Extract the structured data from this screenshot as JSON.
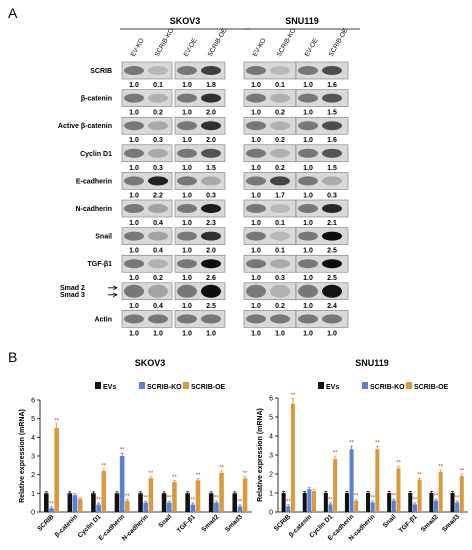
{
  "panel_a": {
    "label": "A",
    "cell_lines": [
      "SKOV3",
      "SNU119"
    ],
    "lanes": [
      "EV-KO",
      "SCRIB-KO",
      "EV-OE",
      "SCRIB-OE"
    ],
    "rows": [
      {
        "name": "SCRIB",
        "skov3": [
          "1.0",
          "0.1",
          "1.0",
          "1.8"
        ],
        "snu119": [
          "1.0",
          "0.1",
          "1.0",
          "1.6"
        ]
      },
      {
        "name": "β-catenin",
        "skov3": [
          "1.0",
          "0.2",
          "1.0",
          "2.0"
        ],
        "snu119": [
          "1.0",
          "0.2",
          "1.0",
          "1.5"
        ]
      },
      {
        "name": "Active β-catenin",
        "skov3": [
          "1.0",
          "0.3",
          "1.0",
          "2.0"
        ],
        "snu119": [
          "1.0",
          "0.2",
          "1.0",
          "1.6"
        ]
      },
      {
        "name": "Cyclin D1",
        "skov3": [
          "1.0",
          "0.3",
          "1.0",
          "1.5"
        ],
        "snu119": [
          "1.0",
          "0.2",
          "1.0",
          "1.5"
        ]
      },
      {
        "name": "E-cadherin",
        "skov3": [
          "1.0",
          "2.2",
          "1.0",
          "0.3"
        ],
        "snu119": [
          "1.0",
          "1.7",
          "1.0",
          "0.3"
        ]
      },
      {
        "name": "N-cadherin",
        "skov3": [
          "1.0",
          "0.4",
          "1.0",
          "2.3"
        ],
        "snu119": [
          "1.0",
          "0.1",
          "1.0",
          "2.1"
        ]
      },
      {
        "name": "Snail",
        "skov3": [
          "1.0",
          "0.4",
          "1.0",
          "2.0"
        ],
        "snu119": [
          "1.0",
          "0.1",
          "1.0",
          "2.5"
        ]
      },
      {
        "name": "TGF-β1",
        "skov3": [
          "1.0",
          "0.2",
          "1.0",
          "2.6"
        ],
        "snu119": [
          "1.0",
          "0.3",
          "1.0",
          "2.5"
        ]
      },
      {
        "name": "Smad 2 / Smad 3",
        "label_lines": [
          "Smad 2",
          "Smad 3"
        ],
        "skov3": [
          "1.0",
          "0.4",
          "1.0",
          "2.5"
        ],
        "snu119": [
          "1.0",
          "0.2",
          "1.0",
          "2.4"
        ]
      },
      {
        "name": "Actin",
        "skov3": [
          "1.0",
          "1.0",
          "1.0",
          "1.0"
        ],
        "snu119": [
          "1.0",
          "1.0",
          "1.0",
          "1.0"
        ]
      }
    ]
  },
  "panel_b": {
    "label": "B",
    "colors": {
      "EVs": "#111111",
      "SCRIB-KO": "#5b7fd1",
      "SCRIB-OE": "#d99a3e"
    },
    "legend": [
      "EVs",
      "SCRIB-KO",
      "SCRIB-OE"
    ],
    "significance": "**"
  },
  "chart_data": [
    {
      "type": "bar",
      "title": "SKOV3",
      "ylabel": "Relative expression (mRNA)",
      "xlabel": "",
      "ylim": [
        0,
        6
      ],
      "yticks": [
        0,
        1,
        2,
        3,
        4,
        5,
        6
      ],
      "categories": [
        "SCRIB",
        "β-catenin",
        "Cyclin D1",
        "E-cadherin",
        "N-cadherin",
        "Snail",
        "TGF-β1",
        "Smad2",
        "Smad3"
      ],
      "series": [
        {
          "name": "EVs",
          "values": [
            1.0,
            1.0,
            1.0,
            1.0,
            1.0,
            1.0,
            1.0,
            1.0,
            1.0
          ]
        },
        {
          "name": "SCRIB-KO",
          "values": [
            0.2,
            0.9,
            0.4,
            3.0,
            0.5,
            0.5,
            0.4,
            0.5,
            0.3
          ]
        },
        {
          "name": "SCRIB-OE",
          "values": [
            4.5,
            0.7,
            2.2,
            0.6,
            1.8,
            1.6,
            1.7,
            2.1,
            1.8
          ]
        }
      ],
      "stars": [
        [
          false,
          false,
          false,
          false,
          false,
          false,
          false,
          false,
          false
        ],
        [
          true,
          false,
          true,
          true,
          true,
          true,
          true,
          true,
          true
        ],
        [
          true,
          false,
          true,
          true,
          true,
          true,
          true,
          true,
          true
        ]
      ],
      "legend_position": "top"
    },
    {
      "type": "bar",
      "title": "SNU119",
      "ylabel": "Relative expression (mRNA)",
      "xlabel": "",
      "ylim": [
        0,
        6
      ],
      "yticks": [
        0,
        1,
        2,
        3,
        4,
        5,
        6
      ],
      "categories": [
        "SCRIB",
        "β-catenin",
        "Cyclin D1",
        "E-cadherin",
        "N-cadherin",
        "Snail",
        "TGF-β1",
        "Smad2",
        "Smad3"
      ],
      "series": [
        {
          "name": "EVs",
          "values": [
            1.0,
            1.0,
            1.0,
            1.0,
            1.0,
            1.0,
            1.0,
            1.0,
            1.0
          ]
        },
        {
          "name": "SCRIB-KO",
          "values": [
            0.3,
            1.2,
            0.4,
            3.3,
            0.5,
            0.6,
            0.4,
            0.6,
            0.5
          ]
        },
        {
          "name": "SCRIB-OE",
          "values": [
            5.7,
            1.1,
            2.8,
            0.6,
            3.3,
            2.3,
            1.7,
            2.1,
            1.9
          ]
        }
      ],
      "stars": [
        [
          false,
          false,
          false,
          false,
          false,
          false,
          false,
          false,
          false
        ],
        [
          true,
          false,
          true,
          true,
          true,
          true,
          true,
          true,
          true
        ],
        [
          true,
          false,
          true,
          true,
          true,
          true,
          true,
          true,
          true
        ]
      ],
      "legend_position": "top"
    }
  ]
}
